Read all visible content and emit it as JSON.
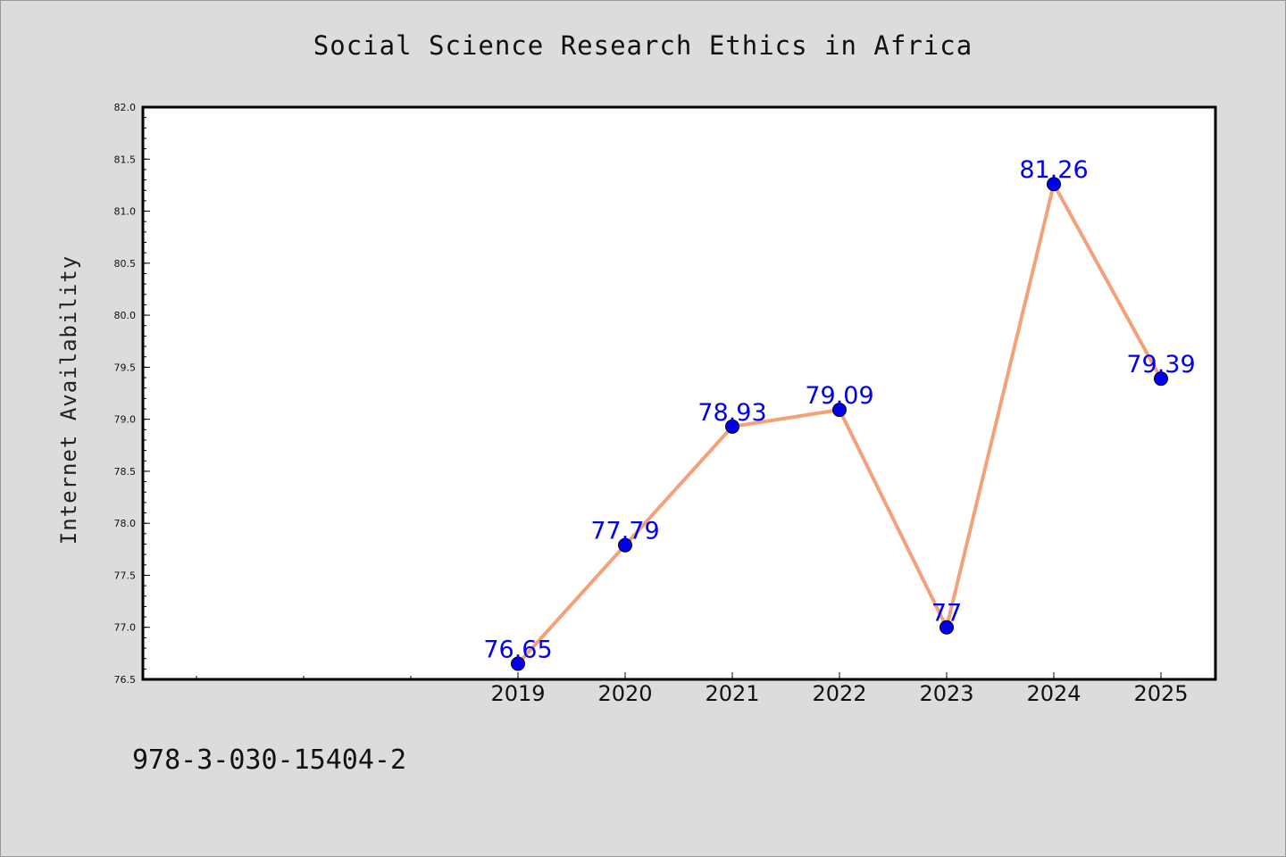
{
  "chart_data": {
    "type": "line",
    "title": "Social Science Research Ethics in Africa",
    "ylabel": "Internet Availability",
    "categories": [
      "2019",
      "2020",
      "2021",
      "2022",
      "2023",
      "2024",
      "2025"
    ],
    "values": [
      76.65,
      77.79,
      78.93,
      79.09,
      77.0,
      81.26,
      79.39
    ],
    "data_labels": [
      "76.65",
      "77.79",
      "78.93",
      "79.09",
      "77",
      "81.26",
      "79.39"
    ],
    "ylim": [
      76.5,
      82.0
    ],
    "yticks": [
      "76.5",
      "77.0",
      "77.5",
      "78.0",
      "78.5",
      "79.0",
      "79.5",
      "80.0",
      "80.5",
      "81.0",
      "81.5",
      "82.0"
    ],
    "grid": false,
    "line_color": "#f4a07a",
    "marker_color": "#0000ee",
    "label_color": "#0000ee"
  },
  "footer": {
    "code": "978-3-030-15404-2"
  }
}
